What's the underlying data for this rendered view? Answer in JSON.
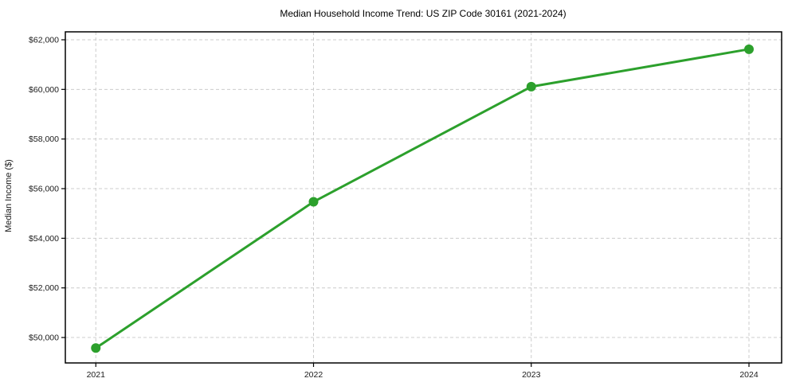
{
  "chart_data": {
    "type": "line",
    "title": "Median Household Income Trend: US ZIP Code 30161 (2021-2024)",
    "ylabel": "Median Income ($)",
    "xlabel": "",
    "x": [
      2021,
      2022,
      2023,
      2024
    ],
    "xtick_labels": [
      "2021",
      "2022",
      "2023",
      "2024"
    ],
    "series": [
      {
        "name": "Median household income",
        "values": [
          49575,
          55470,
          60110,
          61620
        ],
        "color": "#2ca02c",
        "marker": "circle",
        "marker_size": 6,
        "line_width": 3
      }
    ],
    "yticks": [
      50000,
      52000,
      54000,
      56000,
      58000,
      60000,
      62000
    ],
    "ytick_labels": [
      "$50,000",
      "$52,000",
      "$54,000",
      "$56,000",
      "$58,000",
      "$60,000",
      "$62,000"
    ],
    "xlim": [
      2020.86,
      2024.15
    ],
    "ylim": [
      48975,
      62320
    ],
    "grid": true,
    "grid_color": "#cccccc",
    "grid_dash": "4 3",
    "legend_position": "none",
    "colors": {
      "spine": "#000000",
      "text": "#1a1a1a",
      "title_text": "#000000",
      "background": "#ffffff"
    }
  }
}
